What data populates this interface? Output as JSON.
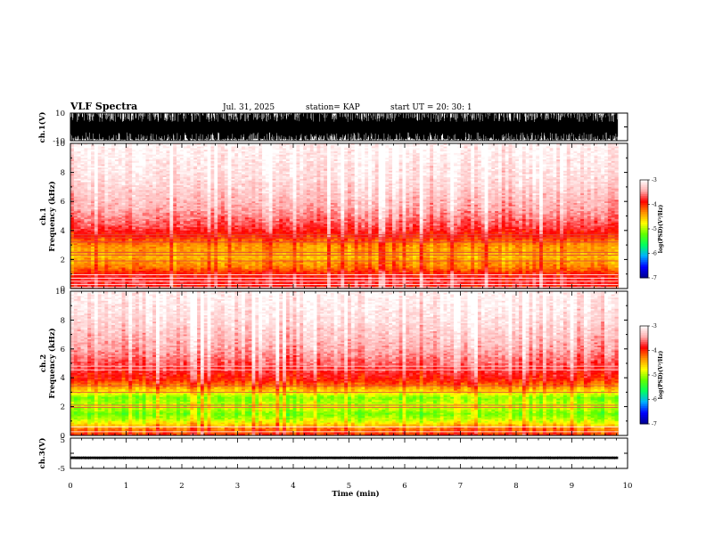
{
  "header": {
    "title": "VLF Spectra",
    "date": "Jul. 31, 2025",
    "station": "station= KAP",
    "start": "start  UT  =   20: 30: 1"
  },
  "colors": {
    "cmap": [
      "#000090",
      "#0000ff",
      "#00b0ff",
      "#00ff60",
      "#60ff00",
      "#ffff00",
      "#ff9000",
      "#ff0000",
      "#ffb0b0",
      "#ffffff"
    ],
    "trace": "#000000"
  },
  "chart_data": [
    {
      "id": "ch1-waveform",
      "type": "line",
      "ylabel": "ch.1(V)",
      "ylim": [
        -10,
        10
      ],
      "yticks": [
        "10",
        "-10"
      ],
      "xlim": [
        0,
        10
      ],
      "data_xmax": 9.83,
      "description": "raw signal, dense high amplitude clipping near ±10 V"
    },
    {
      "id": "ch1-spectrogram",
      "type": "heatmap",
      "ylabel": "ch.1\nFrequency (kHz)",
      "ylim": [
        0,
        10
      ],
      "yticks": [
        "0",
        "2",
        "4",
        "6",
        "8",
        "10"
      ],
      "xlim": [
        0,
        10
      ],
      "data_xmax": 9.83,
      "colorbar": {
        "ticks": [
          "-3",
          "-4",
          "-5",
          "-6",
          "-7"
        ],
        "label": "log(PSD)(V²/Hz)",
        "range": [
          -7,
          -3
        ]
      },
      "profile": [
        {
          "f": 0.0,
          "v": -3.95
        },
        {
          "f": 0.4,
          "v": -3.8
        },
        {
          "f": 0.9,
          "v": -3.9
        },
        {
          "f": 1.5,
          "v": -4.3
        },
        {
          "f": 2.2,
          "v": -4.5
        },
        {
          "f": 3.0,
          "v": -4.35
        },
        {
          "f": 3.6,
          "v": -4.0
        },
        {
          "f": 4.2,
          "v": -3.75
        },
        {
          "f": 5.5,
          "v": -3.45
        },
        {
          "f": 7.5,
          "v": -3.2
        },
        {
          "f": 10.0,
          "v": -3.05
        }
      ],
      "lines_khz": [
        0.08,
        0.28,
        0.5,
        0.72,
        0.95,
        1.9,
        2.3,
        2.5,
        3.2,
        3.5,
        3.7
      ]
    },
    {
      "id": "ch2-spectrogram",
      "type": "heatmap",
      "ylabel": "ch.2\nFrequency (kHz)",
      "ylim": [
        0,
        10
      ],
      "yticks": [
        "0",
        "2",
        "4",
        "6",
        "8",
        "10"
      ],
      "xlim": [
        0,
        10
      ],
      "data_xmax": 9.83,
      "colorbar": {
        "ticks": [
          "-3",
          "-4",
          "-5",
          "-6",
          "-7"
        ],
        "label": "log(PSD)(V²/Hz)",
        "range": [
          -7,
          -3
        ]
      },
      "profile": [
        {
          "f": 0.0,
          "v": -4.0
        },
        {
          "f": 0.5,
          "v": -4.3
        },
        {
          "f": 1.0,
          "v": -4.9
        },
        {
          "f": 1.5,
          "v": -5.2
        },
        {
          "f": 2.0,
          "v": -4.9
        },
        {
          "f": 2.6,
          "v": -5.15
        },
        {
          "f": 3.2,
          "v": -4.5
        },
        {
          "f": 3.8,
          "v": -4.0
        },
        {
          "f": 4.6,
          "v": -3.75
        },
        {
          "f": 6.0,
          "v": -3.45
        },
        {
          "f": 8.0,
          "v": -3.2
        },
        {
          "f": 10.0,
          "v": -3.05
        }
      ],
      "lines_khz": [
        0.25,
        0.6,
        1.95,
        2.1,
        3.0,
        3.45,
        4.55,
        4.8
      ]
    },
    {
      "id": "ch3-waveform",
      "type": "line",
      "ylabel": "ch.3(V)",
      "ylim": [
        -5,
        5
      ],
      "yticks": [
        "5",
        "-5"
      ],
      "xlim": [
        0,
        10
      ],
      "data_xmax": 9.83,
      "level": -1.5,
      "noise": 0.5,
      "description": "near-constant thin band around -1.5 V"
    }
  ],
  "xaxis": {
    "label": "Time (min)",
    "ticks": [
      "0",
      "1",
      "2",
      "3",
      "4",
      "5",
      "6",
      "7",
      "8",
      "9",
      "10"
    ]
  }
}
